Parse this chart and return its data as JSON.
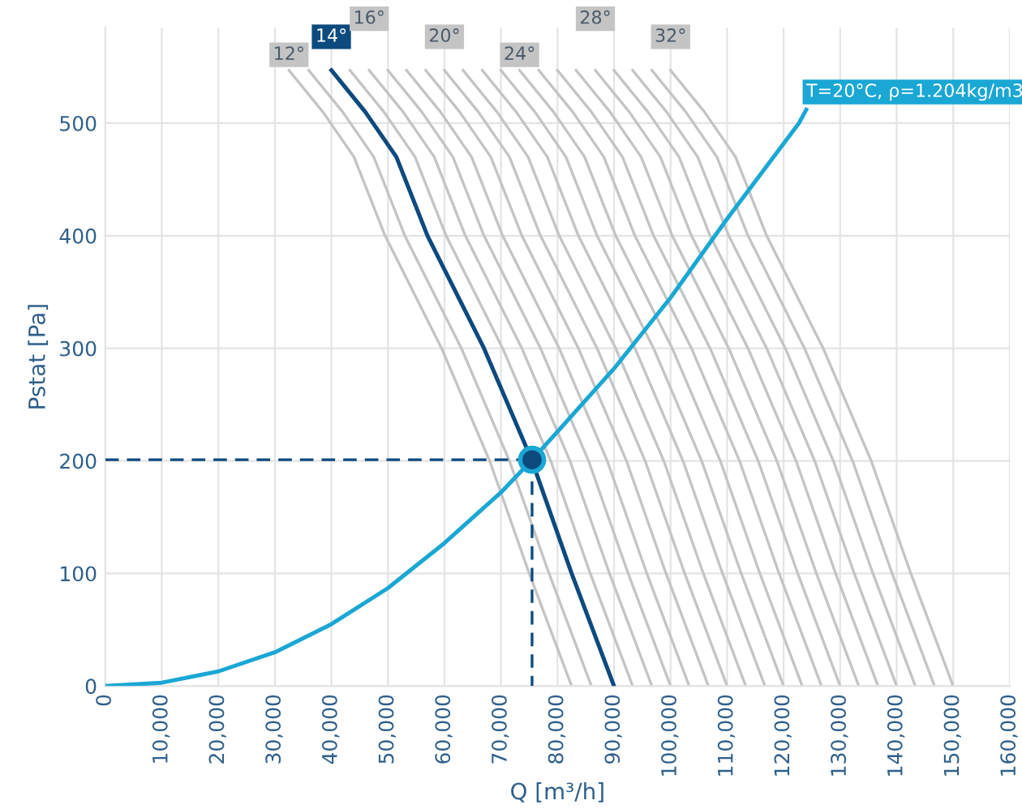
{
  "chart_data": {
    "type": "line",
    "xlabel": "Q [m³/h]",
    "ylabel": "Pstat [Pa]",
    "xlim": [
      0,
      160000
    ],
    "ylim": [
      0,
      585
    ],
    "xticks": [
      0,
      {
        "value": 10000,
        "label": "10,000"
      },
      {
        "value": 20000,
        "label": "20,000"
      },
      {
        "value": 30000,
        "label": "30,000"
      },
      {
        "value": 40000,
        "label": "40,000"
      },
      {
        "value": 50000,
        "label": "50,000"
      },
      {
        "value": 60000,
        "label": "60,000"
      },
      {
        "value": 70000,
        "label": "70,000"
      },
      {
        "value": 80000,
        "label": "80,000"
      },
      {
        "value": 90000,
        "label": "90,000"
      },
      {
        "value": 100000,
        "label": "100,000"
      },
      {
        "value": 110000,
        "label": "110,000"
      },
      {
        "value": 120000,
        "label": "120,000"
      },
      {
        "value": 130000,
        "label": "130,000"
      },
      {
        "value": 140000,
        "label": "140,000"
      },
      {
        "value": 150000,
        "label": "150,000"
      },
      {
        "value": 160000,
        "label": "160,000"
      }
    ],
    "yticks": [
      0,
      100,
      200,
      300,
      400,
      500
    ],
    "grid": true,
    "legend": false,
    "marker": "none",
    "line_style": "solid",
    "series": [
      {
        "name": "12°",
        "color": "#c4c4c4",
        "x": [
          32500,
          38500,
          44000,
          49500,
          59500,
          68000,
          75000,
          82500
        ],
        "values": [
          547,
          510,
          470,
          400,
          300,
          200,
          100,
          0
        ]
      },
      {
        "color": "#c4c4c4",
        "x": [
          36000,
          42000,
          47500,
          53000,
          63000,
          71500,
          78500,
          86000
        ],
        "values": [
          547,
          510,
          470,
          400,
          300,
          200,
          100,
          0
        ]
      },
      {
        "name": "14°",
        "color": "#0d4a7e",
        "x": [
          40000,
          46000,
          51500,
          57000,
          67000,
          75500,
          82500,
          90000
        ],
        "values": [
          547,
          510,
          470,
          400,
          300,
          200,
          100,
          0
        ]
      },
      {
        "color": "#c4c4c4",
        "x": [
          43300,
          49300,
          54800,
          60300,
          70300,
          78800,
          85800,
          93300
        ],
        "values": [
          547,
          510,
          470,
          400,
          300,
          200,
          100,
          0
        ]
      },
      {
        "name": "16°",
        "color": "#c4c4c4",
        "x": [
          46700,
          52700,
          58200,
          63700,
          73700,
          82200,
          89200,
          96700
        ],
        "values": [
          547,
          510,
          470,
          400,
          300,
          200,
          100,
          0
        ]
      },
      {
        "color": "#c4c4c4",
        "x": [
          50000,
          56000,
          61500,
          67000,
          77000,
          85500,
          92500,
          100000
        ],
        "values": [
          547,
          510,
          470,
          400,
          300,
          200,
          100,
          0
        ]
      },
      {
        "color": "#c4c4c4",
        "x": [
          53300,
          59300,
          64800,
          70300,
          80300,
          88800,
          95800,
          103300
        ],
        "values": [
          547,
          510,
          470,
          400,
          300,
          200,
          100,
          0
        ]
      },
      {
        "color": "#c4c4c4",
        "x": [
          56700,
          62700,
          68200,
          73700,
          83700,
          92200,
          99200,
          106700
        ],
        "values": [
          547,
          510,
          470,
          400,
          300,
          200,
          100,
          0
        ]
      },
      {
        "name": "20°",
        "color": "#c4c4c4",
        "x": [
          60000,
          66000,
          71500,
          77000,
          87000,
          95500,
          102500,
          110000
        ],
        "values": [
          547,
          510,
          470,
          400,
          300,
          200,
          100,
          0
        ]
      },
      {
        "color": "#c4c4c4",
        "x": [
          63300,
          69300,
          74800,
          80300,
          90300,
          98800,
          105800,
          113300
        ],
        "values": [
          547,
          510,
          470,
          400,
          300,
          200,
          100,
          0
        ]
      },
      {
        "color": "#c4c4c4",
        "x": [
          66700,
          72700,
          78200,
          83700,
          93700,
          102200,
          109200,
          116700
        ],
        "values": [
          547,
          510,
          470,
          400,
          300,
          200,
          100,
          0
        ]
      },
      {
        "color": "#c4c4c4",
        "x": [
          70000,
          76000,
          81500,
          87000,
          97000,
          105500,
          112500,
          120000
        ],
        "values": [
          547,
          510,
          470,
          400,
          300,
          200,
          100,
          0
        ]
      },
      {
        "name": "24°",
        "color": "#c4c4c4",
        "x": [
          73300,
          79300,
          84800,
          90300,
          100300,
          108800,
          115800,
          123300
        ],
        "values": [
          547,
          510,
          470,
          400,
          300,
          200,
          100,
          0
        ]
      },
      {
        "color": "#c4c4c4",
        "x": [
          76700,
          82700,
          88200,
          93700,
          103700,
          112200,
          119200,
          126700
        ],
        "values": [
          547,
          510,
          470,
          400,
          300,
          200,
          100,
          0
        ]
      },
      {
        "color": "#c4c4c4",
        "x": [
          80000,
          86000,
          91500,
          97000,
          107000,
          115500,
          122500,
          130000
        ],
        "values": [
          547,
          510,
          470,
          400,
          300,
          200,
          100,
          0
        ]
      },
      {
        "color": "#c4c4c4",
        "x": [
          83300,
          89300,
          94800,
          100300,
          110300,
          118800,
          125800,
          133300
        ],
        "values": [
          547,
          510,
          470,
          400,
          300,
          200,
          100,
          0
        ]
      },
      {
        "name": "28°",
        "color": "#c4c4c4",
        "x": [
          86700,
          92700,
          98200,
          103700,
          113700,
          122200,
          129200,
          136700
        ],
        "values": [
          547,
          510,
          470,
          400,
          300,
          200,
          100,
          0
        ]
      },
      {
        "color": "#c4c4c4",
        "x": [
          90000,
          96000,
          101500,
          107000,
          117000,
          125500,
          132500,
          140000
        ],
        "values": [
          547,
          510,
          470,
          400,
          300,
          200,
          100,
          0
        ]
      },
      {
        "color": "#c4c4c4",
        "x": [
          93300,
          99300,
          104800,
          110300,
          120300,
          128800,
          135800,
          143300
        ],
        "values": [
          547,
          510,
          470,
          400,
          300,
          200,
          100,
          0
        ]
      },
      {
        "color": "#c4c4c4",
        "x": [
          96700,
          102700,
          108200,
          113700,
          123700,
          132200,
          139200,
          146700
        ],
        "values": [
          547,
          510,
          470,
          400,
          300,
          200,
          100,
          0
        ]
      },
      {
        "name": "32°",
        "color": "#c4c4c4",
        "x": [
          100000,
          106000,
          111500,
          117000,
          127000,
          135500,
          142500,
          150000
        ],
        "values": [
          547,
          510,
          470,
          400,
          300,
          200,
          100,
          0
        ]
      },
      {
        "name": "T=20°C, ρ=1.204kg/m3",
        "color": "#1aa7d4",
        "x": [
          0,
          10000,
          20000,
          30000,
          40000,
          50000,
          60000,
          70000,
          75500,
          80000,
          90000,
          100000,
          110000,
          122700,
          124000
        ],
        "values": [
          0,
          3,
          13,
          30,
          55,
          87,
          127,
          172,
          201,
          226,
          282,
          345,
          415,
          500,
          512
        ]
      },
      {
        "color": "#0d4a7e",
        "line_style": "dashed",
        "x": [
          0,
          75500
        ],
        "values": [
          201,
          201
        ]
      },
      {
        "color": "#0d4a7e",
        "line_style": "dashed",
        "x": [
          75500,
          75500
        ],
        "values": [
          201,
          0
        ]
      },
      {
        "type": "scatter",
        "color": "#0d4a7e",
        "marker": "circle",
        "x": [
          75500
        ],
        "values": [
          201
        ]
      }
    ]
  }
}
